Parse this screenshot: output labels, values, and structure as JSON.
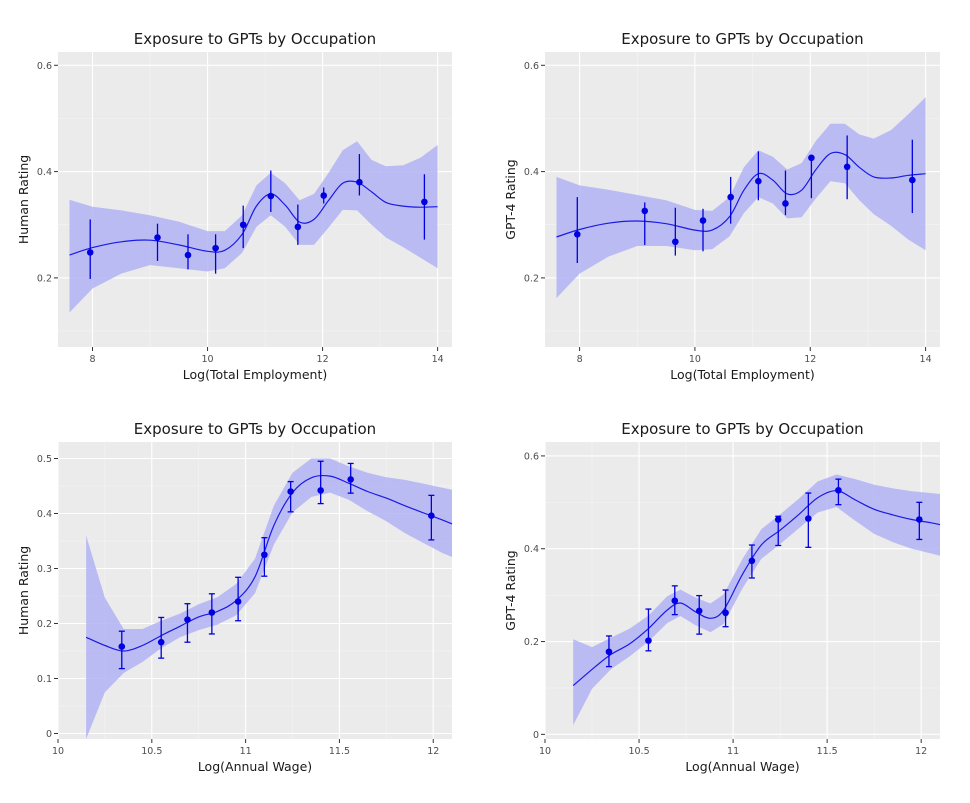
{
  "colors": {
    "panel_background": "#ebebeb",
    "grid_major": "#ffffff",
    "ribbon": "#b3b3f5",
    "line": "#1a1ae6",
    "points": "#0000e0"
  },
  "chart_data": [
    {
      "type": "line",
      "title": "Exposure to GPTs by Occupation",
      "xlabel": "Log(Total Employment)",
      "ylabel": "Human Rating",
      "xlim": [
        7.4,
        14.25
      ],
      "ylim": [
        0.07,
        0.625
      ],
      "x_ticks": [
        8,
        10,
        12,
        14
      ],
      "x_tick_labels": [
        "8",
        "10",
        "12",
        "14"
      ],
      "y_ticks": [
        0.2,
        0.4,
        0.6
      ],
      "y_tick_labels": [
        "0.2",
        "0.4",
        "0.6"
      ],
      "grid": true,
      "points": {
        "x": [
          7.96,
          9.13,
          9.66,
          10.14,
          10.62,
          11.1,
          11.57,
          12.02,
          12.64,
          13.77
        ],
        "y": [
          0.248,
          0.276,
          0.243,
          0.256,
          0.3,
          0.354,
          0.296,
          0.355,
          0.38,
          0.343
        ],
        "ymin": [
          0.198,
          0.232,
          0.216,
          0.208,
          0.256,
          0.324,
          0.262,
          0.34,
          0.355,
          0.272
        ],
        "ymax": [
          0.31,
          0.302,
          0.282,
          0.282,
          0.336,
          0.402,
          0.338,
          0.37,
          0.433,
          0.395
        ]
      },
      "smooth": {
        "x": [
          7.6,
          8.0,
          8.5,
          9.0,
          9.5,
          10.0,
          10.3,
          10.6,
          10.85,
          11.1,
          11.35,
          11.6,
          11.85,
          12.1,
          12.35,
          12.6,
          12.85,
          13.1,
          13.4,
          13.7,
          14.0
        ],
        "y": [
          0.243,
          0.257,
          0.268,
          0.271,
          0.262,
          0.25,
          0.252,
          0.282,
          0.335,
          0.358,
          0.337,
          0.305,
          0.31,
          0.345,
          0.378,
          0.38,
          0.362,
          0.342,
          0.335,
          0.333,
          0.334
        ],
        "ymin": [
          0.135,
          0.18,
          0.208,
          0.224,
          0.218,
          0.212,
          0.218,
          0.247,
          0.296,
          0.318,
          0.296,
          0.262,
          0.262,
          0.294,
          0.328,
          0.327,
          0.3,
          0.276,
          0.258,
          0.238,
          0.218
        ],
        "ymax": [
          0.347,
          0.334,
          0.327,
          0.318,
          0.306,
          0.288,
          0.288,
          0.318,
          0.374,
          0.398,
          0.378,
          0.346,
          0.358,
          0.397,
          0.44,
          0.457,
          0.422,
          0.41,
          0.412,
          0.426,
          0.45
        ]
      }
    },
    {
      "type": "line",
      "title": "Exposure to GPTs by Occupation",
      "xlabel": "Log(Total Employment)",
      "ylabel": "GPT-4 Rating",
      "xlim": [
        7.4,
        14.25
      ],
      "ylim": [
        0.07,
        0.625
      ],
      "x_ticks": [
        8,
        10,
        12,
        14
      ],
      "x_tick_labels": [
        "8",
        "10",
        "12",
        "14"
      ],
      "y_ticks": [
        0.2,
        0.4,
        0.6
      ],
      "y_tick_labels": [
        "0.2",
        "0.4",
        "0.6"
      ],
      "grid": true,
      "points": {
        "x": [
          7.96,
          9.13,
          9.66,
          10.14,
          10.62,
          11.1,
          11.57,
          12.02,
          12.64,
          13.77
        ],
        "y": [
          0.282,
          0.326,
          0.268,
          0.308,
          0.352,
          0.382,
          0.34,
          0.426,
          0.409,
          0.384
        ],
        "ymin": [
          0.228,
          0.262,
          0.242,
          0.25,
          0.302,
          0.346,
          0.318,
          0.35,
          0.348,
          0.322
        ],
        "ymax": [
          0.352,
          0.342,
          0.332,
          0.33,
          0.39,
          0.438,
          0.402,
          0.43,
          0.468,
          0.46
        ]
      },
      "smooth": {
        "x": [
          7.6,
          8.0,
          8.5,
          9.0,
          9.5,
          10.0,
          10.3,
          10.6,
          10.85,
          11.1,
          11.35,
          11.6,
          11.85,
          12.1,
          12.35,
          12.6,
          12.85,
          13.1,
          13.4,
          13.7,
          14.0
        ],
        "y": [
          0.277,
          0.291,
          0.303,
          0.307,
          0.302,
          0.29,
          0.29,
          0.315,
          0.365,
          0.396,
          0.384,
          0.358,
          0.365,
          0.404,
          0.434,
          0.432,
          0.408,
          0.39,
          0.388,
          0.393,
          0.396
        ],
        "ymin": [
          0.162,
          0.208,
          0.24,
          0.26,
          0.26,
          0.252,
          0.254,
          0.278,
          0.322,
          0.352,
          0.34,
          0.312,
          0.314,
          0.35,
          0.382,
          0.378,
          0.346,
          0.32,
          0.298,
          0.272,
          0.252
        ],
        "ymax": [
          0.39,
          0.374,
          0.366,
          0.356,
          0.346,
          0.328,
          0.326,
          0.352,
          0.408,
          0.44,
          0.428,
          0.404,
          0.416,
          0.458,
          0.49,
          0.49,
          0.47,
          0.462,
          0.478,
          0.508,
          0.54
        ]
      }
    },
    {
      "type": "line",
      "title": "Exposure to GPTs by Occupation",
      "xlabel": "Log(Annual Wage)",
      "ylabel": "Human Rating",
      "xlim": [
        10.0,
        12.1
      ],
      "ylim": [
        -0.01,
        0.53
      ],
      "x_ticks": [
        10,
        10.5,
        11,
        11.5,
        12
      ],
      "x_tick_labels": [
        "10",
        "10.5",
        "11",
        "11.5",
        "12"
      ],
      "y_ticks": [
        0,
        0.1,
        0.2,
        0.3,
        0.4,
        0.5
      ],
      "y_tick_labels": [
        "0",
        "0.1",
        "0.2",
        "0.3",
        "0.4",
        "0.5"
      ],
      "grid": true,
      "points": {
        "x": [
          10.34,
          10.55,
          10.69,
          10.82,
          10.96,
          11.1,
          11.24,
          11.4,
          11.56,
          11.99
        ],
        "y": [
          0.158,
          0.166,
          0.207,
          0.22,
          0.24,
          0.325,
          0.44,
          0.442,
          0.462,
          0.396
        ],
        "ymin": [
          0.118,
          0.137,
          0.166,
          0.181,
          0.205,
          0.286,
          0.403,
          0.418,
          0.437,
          0.352
        ],
        "ymax": [
          0.186,
          0.211,
          0.236,
          0.254,
          0.284,
          0.356,
          0.458,
          0.495,
          0.491,
          0.433
        ]
      },
      "smooth": {
        "x": [
          10.15,
          10.25,
          10.35,
          10.45,
          10.55,
          10.65,
          10.75,
          10.85,
          10.95,
          11.05,
          11.15,
          11.25,
          11.35,
          11.45,
          11.55,
          11.65,
          11.75,
          11.85,
          11.95,
          12.05,
          12.1
        ],
        "y": [
          0.175,
          0.16,
          0.15,
          0.16,
          0.178,
          0.195,
          0.212,
          0.222,
          0.242,
          0.285,
          0.378,
          0.438,
          0.465,
          0.468,
          0.455,
          0.44,
          0.428,
          0.414,
          0.401,
          0.388,
          0.381
        ],
        "ymin": [
          -0.01,
          0.075,
          0.11,
          0.13,
          0.155,
          0.175,
          0.188,
          0.198,
          0.215,
          0.255,
          0.343,
          0.402,
          0.43,
          0.438,
          0.425,
          0.404,
          0.386,
          0.364,
          0.346,
          0.328,
          0.321
        ],
        "ymax": [
          0.36,
          0.247,
          0.19,
          0.19,
          0.205,
          0.218,
          0.235,
          0.248,
          0.272,
          0.318,
          0.414,
          0.474,
          0.5,
          0.5,
          0.486,
          0.474,
          0.466,
          0.461,
          0.454,
          0.447,
          0.443
        ]
      }
    },
    {
      "type": "line",
      "title": "Exposure to GPTs by Occupation",
      "xlabel": "Log(Annual Wage)",
      "ylabel": "GPT-4 Rating",
      "xlim": [
        10.0,
        12.1
      ],
      "ylim": [
        -0.01,
        0.63
      ],
      "x_ticks": [
        10,
        10.5,
        11,
        11.5,
        12
      ],
      "x_tick_labels": [
        "10",
        "10.5",
        "11",
        "11.5",
        "12"
      ],
      "y_ticks": [
        0,
        0.2,
        0.4,
        0.6
      ],
      "y_tick_labels": [
        "0",
        "0.2",
        "0.4",
        "0.6"
      ],
      "grid": true,
      "points": {
        "x": [
          10.34,
          10.55,
          10.69,
          10.82,
          10.96,
          11.1,
          11.24,
          11.4,
          11.56,
          11.99
        ],
        "y": [
          0.178,
          0.202,
          0.288,
          0.266,
          0.262,
          0.374,
          0.463,
          0.465,
          0.526,
          0.463
        ],
        "ymin": [
          0.146,
          0.18,
          0.258,
          0.216,
          0.232,
          0.337,
          0.407,
          0.403,
          0.495,
          0.42
        ],
        "ymax": [
          0.212,
          0.27,
          0.32,
          0.299,
          0.311,
          0.408,
          0.47,
          0.52,
          0.55,
          0.5
        ]
      },
      "smooth": {
        "x": [
          10.15,
          10.25,
          10.35,
          10.45,
          10.55,
          10.65,
          10.72,
          10.8,
          10.88,
          10.95,
          11.05,
          11.15,
          11.25,
          11.35,
          11.45,
          11.55,
          11.65,
          11.75,
          11.85,
          11.95,
          12.05,
          12.1
        ],
        "y": [
          0.105,
          0.14,
          0.172,
          0.195,
          0.228,
          0.268,
          0.283,
          0.264,
          0.25,
          0.268,
          0.345,
          0.408,
          0.44,
          0.474,
          0.51,
          0.525,
          0.505,
          0.485,
          0.473,
          0.463,
          0.456,
          0.452
        ],
        "ymin": [
          0.02,
          0.098,
          0.14,
          0.168,
          0.2,
          0.24,
          0.255,
          0.235,
          0.22,
          0.238,
          0.315,
          0.378,
          0.41,
          0.444,
          0.478,
          0.49,
          0.46,
          0.432,
          0.414,
          0.4,
          0.39,
          0.385
        ],
        "ymax": [
          0.205,
          0.188,
          0.208,
          0.228,
          0.256,
          0.298,
          0.312,
          0.295,
          0.282,
          0.302,
          0.378,
          0.442,
          0.474,
          0.508,
          0.545,
          0.56,
          0.55,
          0.538,
          0.53,
          0.524,
          0.52,
          0.518
        ]
      }
    }
  ]
}
